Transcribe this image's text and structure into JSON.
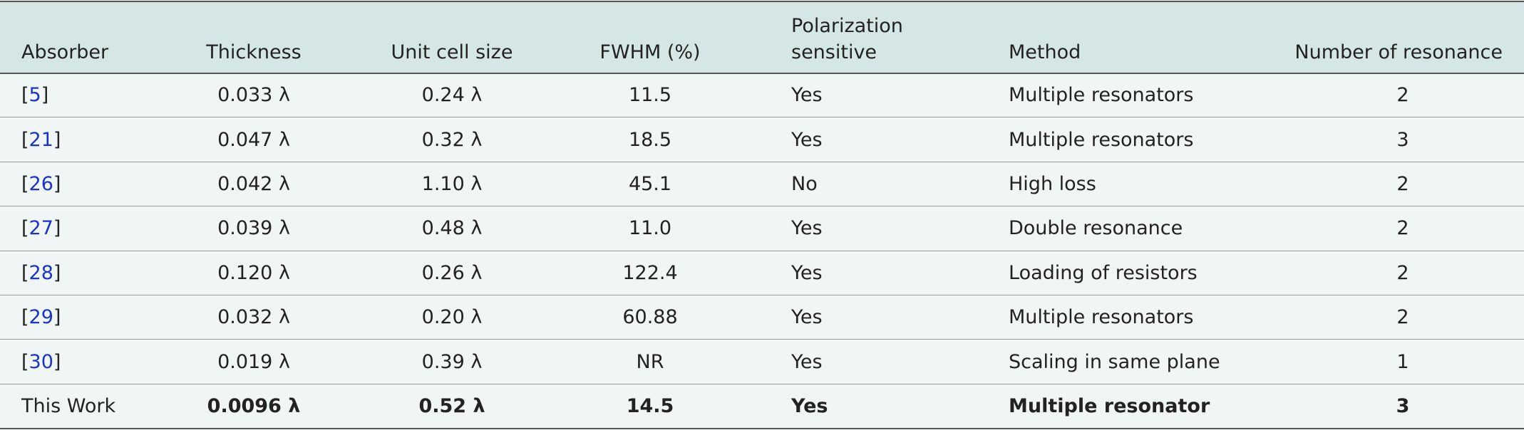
{
  "table": {
    "header": [
      "Absorber",
      "Thickness",
      "Unit cell size",
      "FWHM (%)",
      "Polarization sensitive",
      "Method",
      "Number of resonance"
    ],
    "rows": [
      [
        {
          "open": "[",
          "link": "5",
          "close": "]"
        },
        "0.033 λ",
        "0.24 λ",
        "11.5",
        "Yes",
        "Multiple resonators",
        "2"
      ],
      [
        {
          "open": "[",
          "link": "21",
          "close": "]"
        },
        "0.047 λ",
        "0.32 λ",
        "18.5",
        "Yes",
        "Multiple resonators",
        "3"
      ],
      [
        {
          "open": "[",
          "link": "26",
          "close": "]"
        },
        "0.042 λ",
        "1.10 λ",
        "45.1",
        "No",
        "High loss",
        "2"
      ],
      [
        {
          "open": "[",
          "link": "27",
          "close": "]"
        },
        "0.039 λ",
        "0.48 λ",
        "11.0",
        "Yes",
        "Double resonance",
        "2"
      ],
      [
        {
          "open": "[",
          "link": "28",
          "close": "]"
        },
        "0.120 λ",
        "0.26 λ",
        "122.4",
        "Yes",
        "Loading of resistors",
        "2"
      ],
      [
        {
          "open": "[",
          "link": "29",
          "close": "]"
        },
        "0.032 λ",
        "0.20 λ",
        "60.88",
        "Yes",
        "Multiple resonators",
        "2"
      ],
      [
        {
          "open": "[",
          "link": "30",
          "close": "]"
        },
        "0.019 λ",
        "0.39 λ",
        "NR",
        "Yes",
        "Scaling in same plane",
        "1"
      ],
      [
        "This Work",
        "0.0096 λ",
        "0.52 λ",
        "14.5",
        "Yes",
        "Multiple resonator",
        "3"
      ]
    ]
  }
}
